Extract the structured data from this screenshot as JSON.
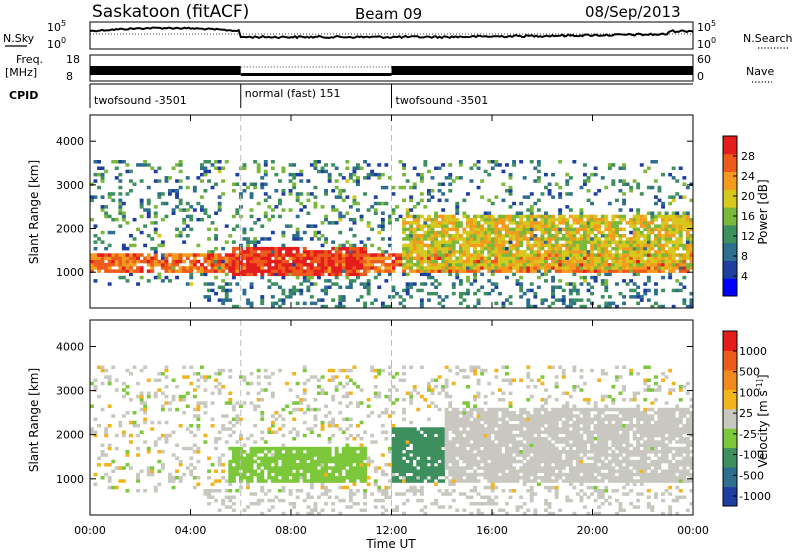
{
  "header": {
    "site": "Saskatoon (fitACF)",
    "beam": "Beam 09",
    "date": "08/Sep/2013"
  },
  "noise_panel": {
    "left_label": "N.Sky",
    "right_label": "N.Search",
    "tick_top": "10^5",
    "tick_bottom": "10^0"
  },
  "freq_panel": {
    "left_label_line1": "Freq.",
    "left_label_line2": "[MHz]",
    "right_label": "Nave",
    "left_ticks": [
      "18",
      "8"
    ],
    "right_ticks": [
      "60",
      "0"
    ]
  },
  "cpid": {
    "label": "CPID",
    "segments": [
      {
        "name": "twofsound -3501",
        "start_hour": 0,
        "end_hour": 6
      },
      {
        "name": "normal (fast) 151",
        "start_hour": 6,
        "end_hour": 12
      },
      {
        "name": "twofsound -3501",
        "start_hour": 12,
        "end_hour": 24
      }
    ]
  },
  "chart_data": [
    {
      "type": "heatmap",
      "title": "",
      "ylabel": "Slant Range [km]",
      "ylim": [
        180,
        4600
      ],
      "yticks": [
        "1000",
        "2000",
        "3000",
        "4000"
      ],
      "colorbar": {
        "label": "Power [dB]",
        "ticks": [
          "4",
          "8",
          "12",
          "16",
          "20",
          "24",
          "28"
        ],
        "colors": [
          "#0000ff",
          "#1f3fa0",
          "#2e6e8e",
          "#3d8f5e",
          "#79b83a",
          "#d6c81c",
          "#f49a1e",
          "#ee5a1c",
          "#e41c1c"
        ],
        "range": [
          0,
          32
        ]
      },
      "regions": [
        {
          "desc": "near-range band",
          "x0": 0,
          "x1": 24,
          "r0": 1000,
          "r1": 1400,
          "level": 26
        },
        {
          "desc": "dawn backscatter",
          "x0": 5.5,
          "x1": 11,
          "r0": 900,
          "r1": 1600,
          "level": 29
        },
        {
          "desc": "afternoon streak",
          "x0": 12.3,
          "x1": 24,
          "r0": 1100,
          "r1": 2300,
          "level": 20
        }
      ]
    },
    {
      "type": "heatmap",
      "title": "",
      "ylabel": "Slant Range [km]",
      "ylim": [
        180,
        4600
      ],
      "yticks": [
        "1000",
        "2000",
        "3000",
        "4000"
      ],
      "colorbar": {
        "label": "Velocity [m s^-1]",
        "ticks": [
          "1000",
          "500",
          "100",
          "25",
          "-25",
          "-100",
          "-500",
          "-1000"
        ],
        "colors": [
          "#1f3fa0",
          "#2e6e8e",
          "#3d8f5e",
          "#7cc83a",
          "#c8c8c0",
          "#f2b41c",
          "#f08a1e",
          "#ee5a1c",
          "#e41c1c"
        ],
        "range": [
          -1200,
          1200
        ]
      },
      "regions": [
        {
          "desc": "morning flow",
          "x0": 5.5,
          "x1": 11,
          "r0": 900,
          "r1": 1700,
          "level": -300
        },
        {
          "desc": "afternoon towards",
          "x0": 12,
          "x1": 14,
          "r0": 900,
          "r1": 2200,
          "level": -500
        },
        {
          "desc": "ground scatter",
          "x0": 14,
          "x1": 24,
          "r0": 900,
          "r1": 2600,
          "level": 0
        }
      ]
    }
  ],
  "x_axis": {
    "label": "Time UT",
    "ticks": [
      "00:00",
      "04:00",
      "08:00",
      "12:00",
      "16:00",
      "20:00",
      "00:00"
    ],
    "range_hours": [
      0,
      24
    ]
  },
  "colors": {
    "frame": "#000000",
    "dashed_boundary": "#bbbbbb"
  }
}
